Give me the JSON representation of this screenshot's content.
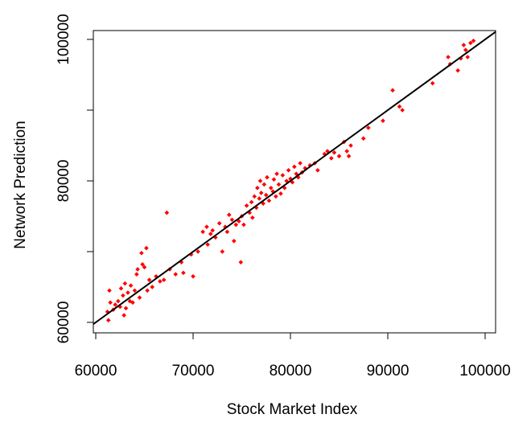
{
  "chart_data": {
    "type": "scatter",
    "x_label": "Stock Market Index",
    "y_label": "Network Prediction",
    "color": "#ff0000",
    "line_color": "#000000",
    "diagonal": true,
    "xlim": [
      59750,
      101075
    ],
    "ylim": [
      58520,
      101250
    ],
    "xticks": [
      60000,
      70000,
      80000,
      90000,
      100000
    ],
    "yticks": [
      60000,
      80000,
      100000
    ],
    "yminor": [
      70000,
      90000
    ],
    "x": [
      61200,
      61300,
      61500,
      61400,
      61800,
      62000,
      62300,
      62500,
      62600,
      62800,
      62900,
      63000,
      63100,
      63300,
      63500,
      63600,
      63800,
      64000,
      64200,
      64300,
      64500,
      64700,
      64800,
      65000,
      65200,
      65300,
      65500,
      65800,
      66200,
      66600,
      67000,
      67300,
      67600,
      68200,
      68800,
      69000,
      69800,
      70000,
      70500,
      71000,
      71400,
      71500,
      71800,
      72000,
      72300,
      72700,
      73000,
      73300,
      73500,
      73700,
      74000,
      74200,
      74400,
      74700,
      74900,
      75000,
      75200,
      75500,
      75800,
      76000,
      76100,
      76300,
      76500,
      76600,
      76800,
      76900,
      77000,
      77200,
      77300,
      77500,
      77600,
      77800,
      78000,
      78200,
      78300,
      78500,
      78600,
      78800,
      79000,
      79200,
      79400,
      79600,
      79800,
      80000,
      80200,
      80400,
      80600,
      80800,
      81000,
      81200,
      81500,
      82000,
      82500,
      82800,
      83500,
      83800,
      84200,
      84500,
      85000,
      85500,
      85800,
      86000,
      86200,
      87500,
      88000,
      89500,
      90500,
      91200,
      91500,
      94600,
      96200,
      96400,
      97200,
      97500,
      97800,
      98000,
      98200,
      98500,
      98800
    ],
    "y": [
      61500,
      60300,
      62800,
      64500,
      61800,
      62500,
      63000,
      62200,
      64800,
      63800,
      61000,
      65500,
      62000,
      64200,
      63000,
      65200,
      62800,
      64500,
      66800,
      67500,
      63500,
      69800,
      68200,
      67800,
      70500,
      64500,
      66000,
      65000,
      66500,
      65800,
      66000,
      75500,
      67500,
      66800,
      68500,
      67000,
      69600,
      66500,
      70000,
      72800,
      73500,
      71000,
      72500,
      73000,
      72000,
      74000,
      70000,
      73500,
      72800,
      75200,
      74500,
      71500,
      73800,
      74300,
      68500,
      75000,
      73800,
      76500,
      75500,
      77000,
      74800,
      77800,
      76200,
      79000,
      77500,
      80000,
      78300,
      76800,
      79500,
      78000,
      80500,
      77200,
      79000,
      78500,
      80200,
      77800,
      81000,
      79500,
      78200,
      80800,
      79000,
      80000,
      81500,
      80300,
      79800,
      82000,
      81000,
      80500,
      82500,
      81200,
      81800,
      82200,
      82500,
      81500,
      83800,
      84200,
      83200,
      84000,
      83500,
      85500,
      84200,
      83500,
      85000,
      86000,
      87500,
      88500,
      92800,
      90500,
      90000,
      93800,
      97500,
      96500,
      95600,
      97300,
      99200,
      98500,
      97500,
      99500,
      99800
    ]
  }
}
